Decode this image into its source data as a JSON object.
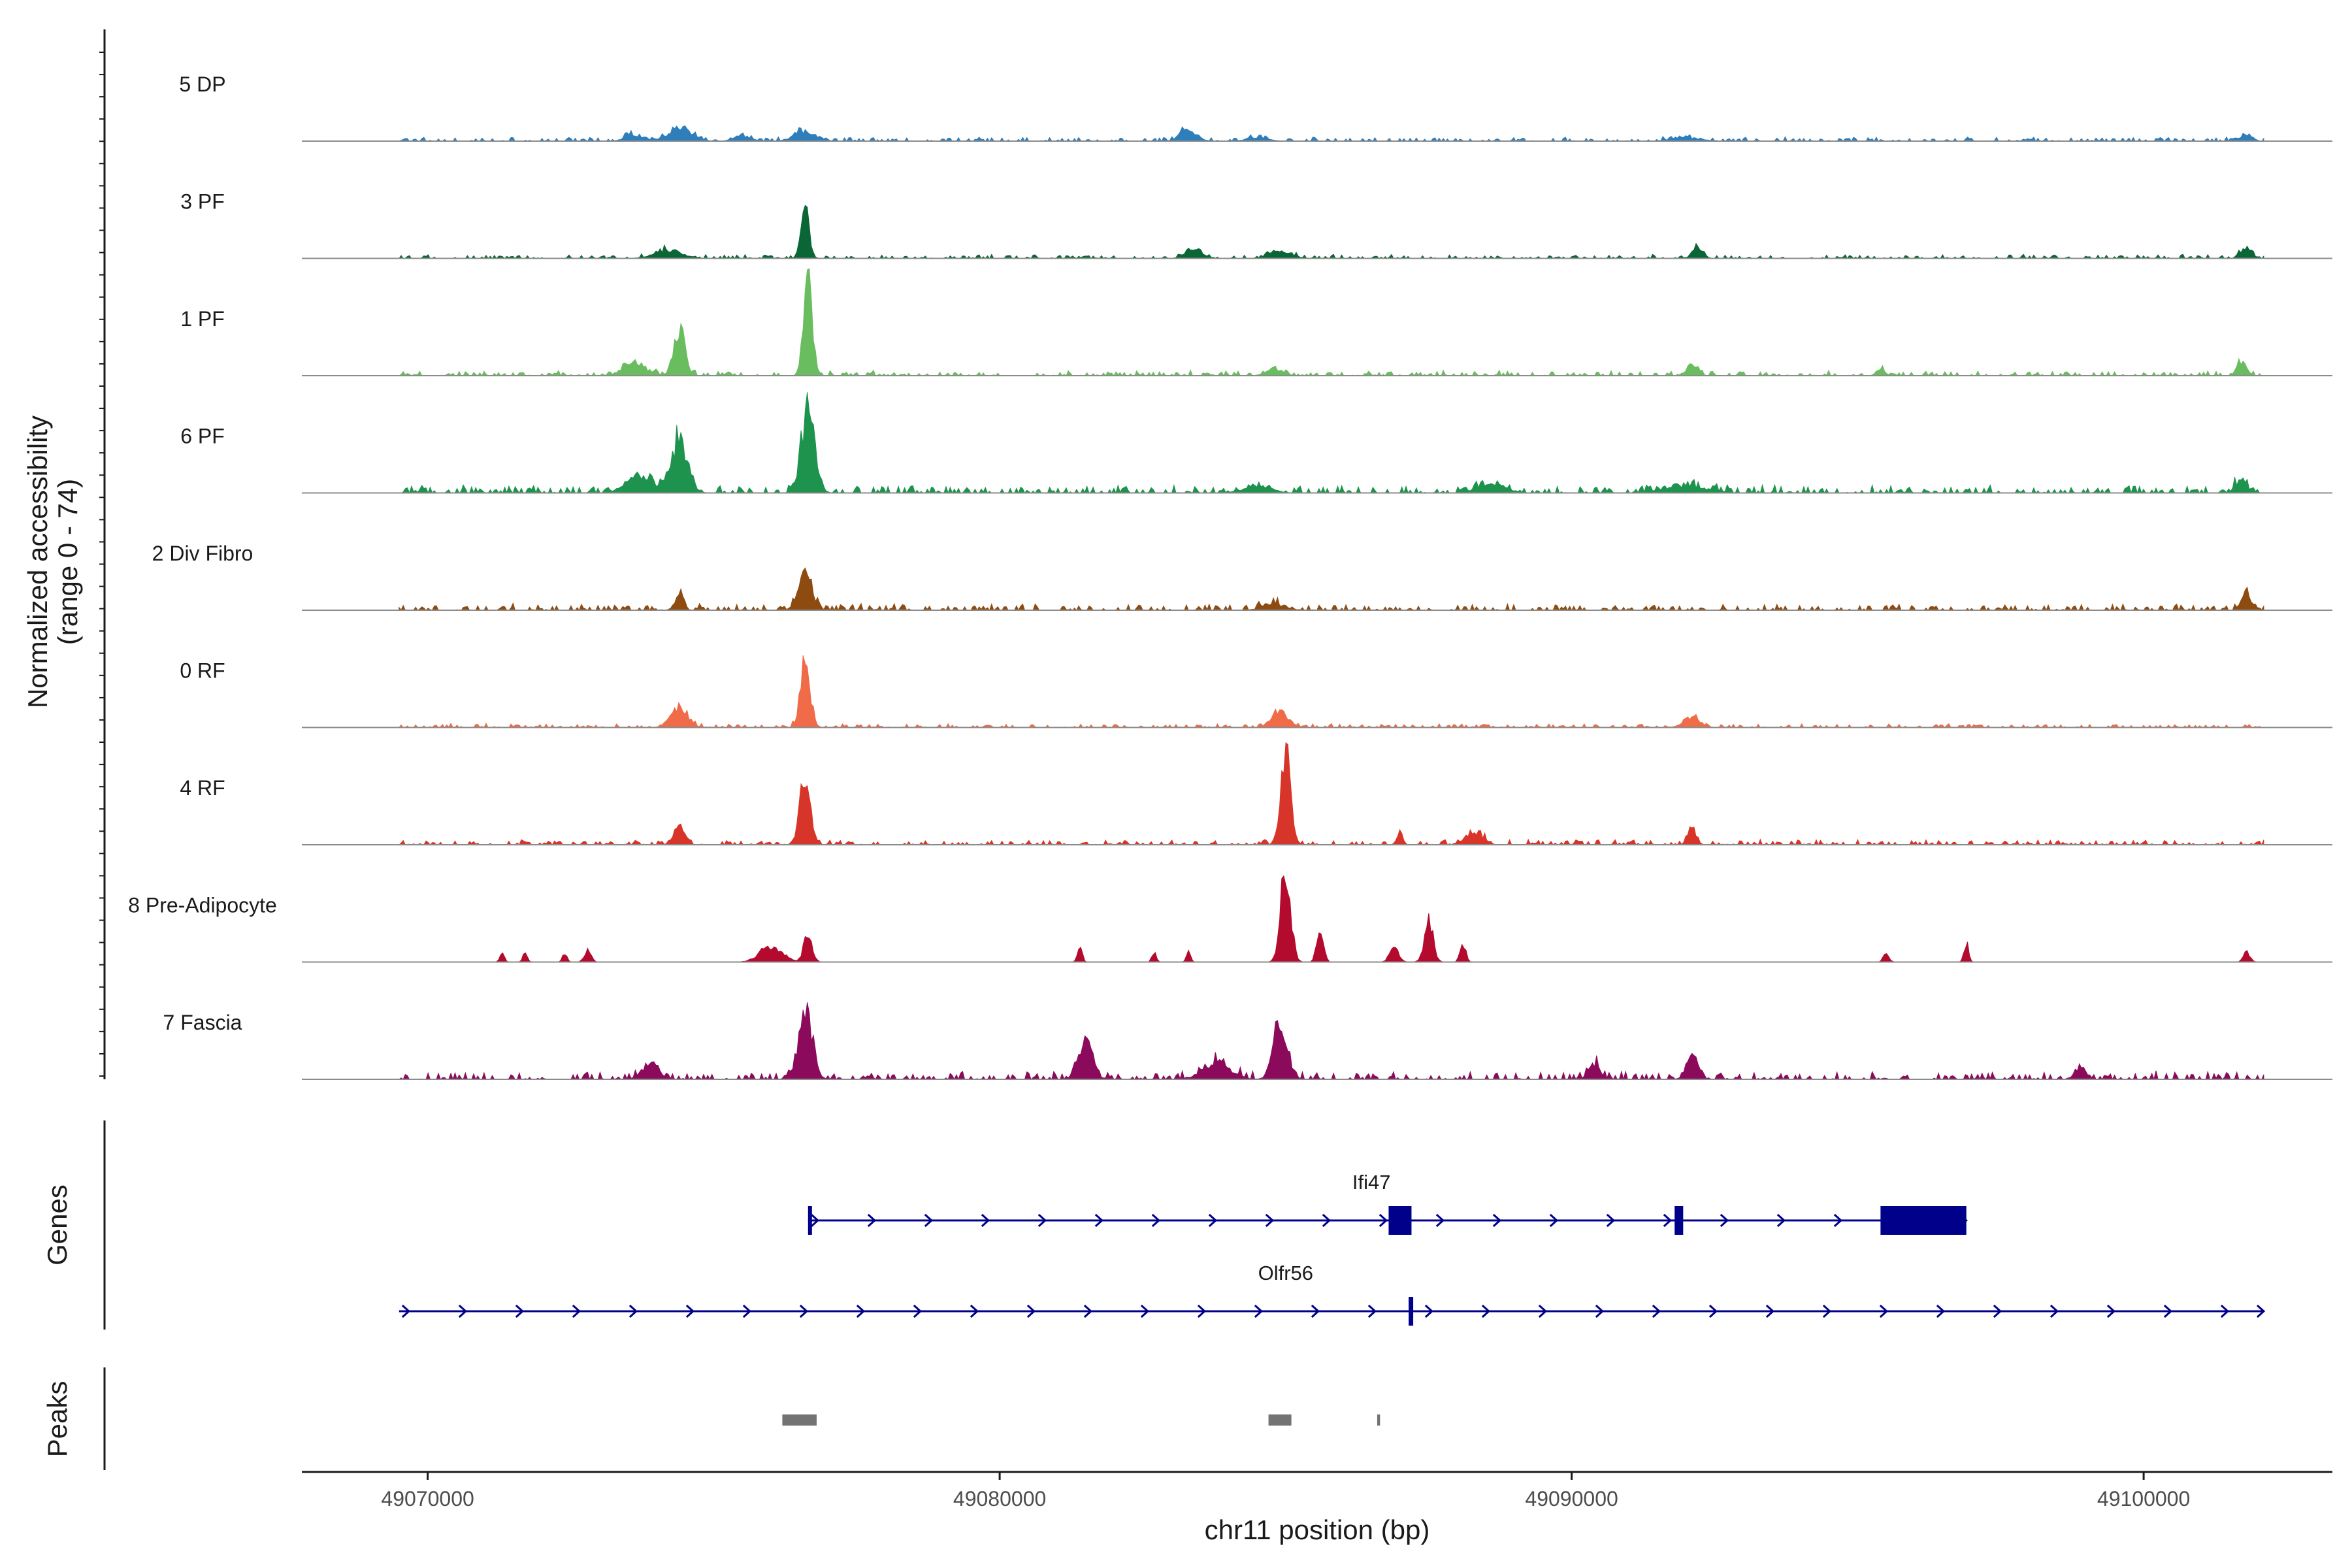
{
  "chart_data": {
    "type": "area",
    "title": "",
    "xlabel": "chr11 position (bp)",
    "ylabel": "Normalized accessibility",
    "ylabel_sub": "(range 0 - 74)",
    "xlim": [
      49067800,
      49103300
    ],
    "ylim": [
      0,
      74
    ],
    "x_ticks": [
      49070000,
      49080000,
      49090000,
      49100000
    ],
    "x_tick_labels": [
      "49070000",
      "49080000",
      "49090000",
      "49100000"
    ],
    "genes_label": "Genes",
    "peaks_label": "Peaks",
    "series": [
      {
        "name": "5 DP",
        "color": "#2F7EBC",
        "noise": 1.5,
        "peaks": [
          [
            49073600,
            4,
            300
          ],
          [
            49074400,
            7,
            450
          ],
          [
            49075500,
            3,
            300
          ],
          [
            49076600,
            6,
            400
          ],
          [
            49083300,
            7,
            300
          ],
          [
            49084500,
            2,
            400
          ],
          [
            49092000,
            2,
            500
          ],
          [
            49101800,
            4,
            200
          ]
        ]
      },
      {
        "name": "3 PF",
        "color": "#0B6636",
        "noise": 1.5,
        "peaks": [
          [
            49074200,
            5,
            500
          ],
          [
            49076600,
            30,
            150
          ],
          [
            49083400,
            6,
            300
          ],
          [
            49084900,
            4,
            400
          ],
          [
            49092200,
            6,
            200
          ],
          [
            49101800,
            6,
            200
          ]
        ]
      },
      {
        "name": "1 PF",
        "color": "#6ABD5F",
        "noise": 2.0,
        "peaks": [
          [
            49073600,
            8,
            400
          ],
          [
            49074400,
            30,
            200
          ],
          [
            49076650,
            56,
            160
          ],
          [
            49084800,
            4,
            300
          ],
          [
            49092100,
            7,
            200
          ],
          [
            49095400,
            4,
            150
          ],
          [
            49101700,
            8,
            150
          ]
        ]
      },
      {
        "name": "6 PF",
        "color": "#1D934D",
        "noise": 3.0,
        "peaks": [
          [
            49073700,
            10,
            500
          ],
          [
            49074400,
            33,
            300
          ],
          [
            49076650,
            50,
            250
          ],
          [
            49084500,
            4,
            500
          ],
          [
            49088600,
            6,
            500
          ],
          [
            49092000,
            4,
            800
          ],
          [
            49101700,
            8,
            200
          ]
        ]
      },
      {
        "name": "2 Div Fibro",
        "color": "#8E4B10",
        "noise": 2.5,
        "peaks": [
          [
            49074400,
            11,
            150
          ],
          [
            49076600,
            22,
            250
          ],
          [
            49084800,
            4,
            400
          ],
          [
            49101800,
            8,
            200
          ]
        ]
      },
      {
        "name": "0 RF",
        "color": "#F06B48",
        "noise": 1.5,
        "peaks": [
          [
            49074400,
            12,
            300
          ],
          [
            49076600,
            44,
            170
          ],
          [
            49084900,
            10,
            300
          ],
          [
            49092100,
            6,
            300
          ]
        ]
      },
      {
        "name": "4 RF",
        "color": "#D8352A",
        "noise": 2.0,
        "peaks": [
          [
            49074400,
            11,
            200
          ],
          [
            49076600,
            40,
            200
          ],
          [
            49085000,
            60,
            180
          ],
          [
            49087000,
            8,
            100
          ],
          [
            49088300,
            8,
            300
          ],
          [
            49092100,
            10,
            150
          ]
        ]
      },
      {
        "name": "8 Pre-Adipocyte",
        "color": "#B30A2E",
        "noise": 0.0,
        "peaks": [
          [
            49071300,
            6,
            80
          ],
          [
            49071700,
            6,
            80
          ],
          [
            49072400,
            6,
            80
          ],
          [
            49072800,
            8,
            120
          ],
          [
            49076000,
            10,
            400
          ],
          [
            49076650,
            18,
            150
          ],
          [
            49081400,
            12,
            80
          ],
          [
            49082700,
            6,
            80
          ],
          [
            49083300,
            6,
            80
          ],
          [
            49085000,
            60,
            180
          ],
          [
            49085600,
            22,
            120
          ],
          [
            49086900,
            10,
            160
          ],
          [
            49087500,
            25,
            160
          ],
          [
            49088100,
            12,
            100
          ],
          [
            49095500,
            6,
            100
          ],
          [
            49096900,
            12,
            80
          ],
          [
            49101800,
            6,
            120
          ]
        ]
      },
      {
        "name": "7 Fascia",
        "color": "#8C0A5B",
        "noise": 3.0,
        "peaks": [
          [
            49073900,
            10,
            300
          ],
          [
            49076600,
            40,
            250
          ],
          [
            49081500,
            25,
            250
          ],
          [
            49083800,
            10,
            500
          ],
          [
            49084900,
            32,
            250
          ],
          [
            49090400,
            10,
            200
          ],
          [
            49092100,
            16,
            200
          ],
          [
            49098900,
            8,
            200
          ]
        ]
      }
    ],
    "genes": [
      {
        "name": "Ifi47",
        "strand": "+",
        "start": 49076650,
        "end": 49096900,
        "exons": [
          [
            49076650,
            49076710
          ],
          [
            49086800,
            49087200
          ],
          [
            49091800,
            49091950
          ],
          [
            49095400,
            49096900
          ]
        ]
      },
      {
        "name": "Olfr56",
        "strand": "+",
        "start": 49069500,
        "end": 49102100,
        "exons": [
          [
            49087150,
            49087230
          ]
        ]
      }
    ],
    "peaks": [
      [
        49076200,
        49076800
      ],
      [
        49084700,
        49085100
      ],
      [
        49086600,
        49086650
      ]
    ]
  },
  "colors": {
    "gene": "#00008B",
    "peak": "#737373",
    "baseline": "#8c8c8c",
    "axis": "#1a1a1a"
  }
}
